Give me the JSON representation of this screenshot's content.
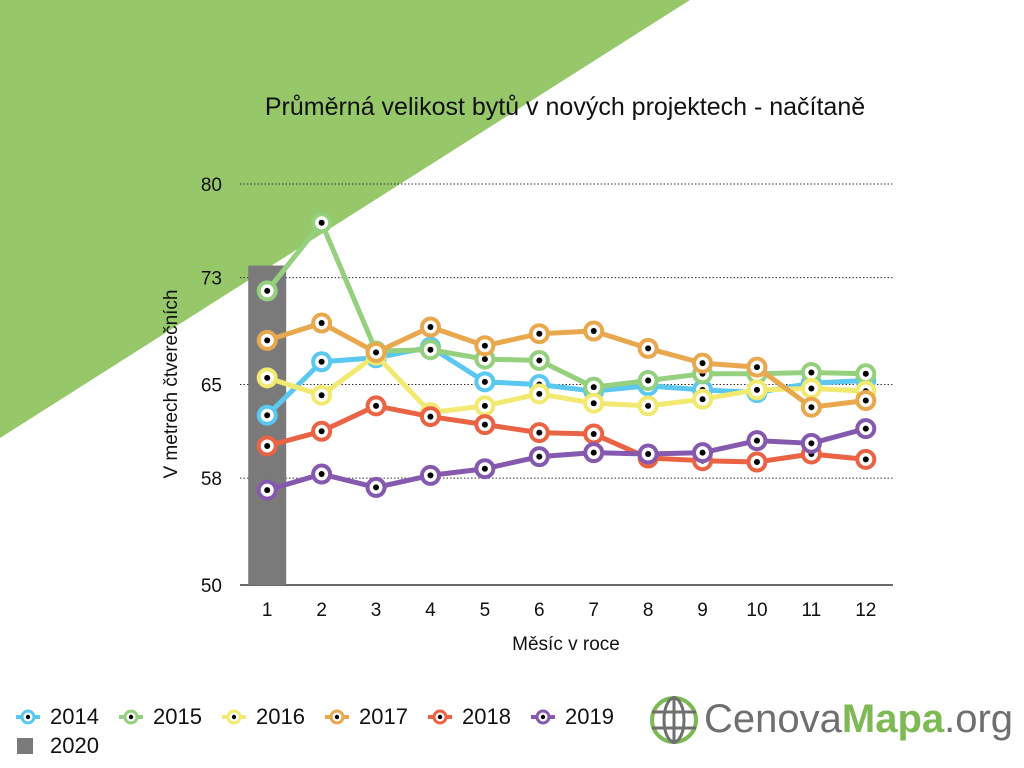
{
  "chart_data": {
    "type": "line",
    "title": "Průměrná velikost bytů v nových projektech - načítaně",
    "xlabel": "Měsíc v roce",
    "ylabel": "V metrech čtverečních",
    "x": [
      1,
      2,
      3,
      4,
      5,
      6,
      7,
      8,
      9,
      10,
      11,
      12
    ],
    "ylim": [
      50,
      80
    ],
    "yticks": [
      50,
      58,
      65,
      73,
      80
    ],
    "grid": "dotted horizontal",
    "series": [
      {
        "name": "2014",
        "color": "#5ac8f0",
        "type": "line",
        "values": [
          62.7,
          66.7,
          67.0,
          67.8,
          65.2,
          65.0,
          64.5,
          64.9,
          64.6,
          64.4,
          65.1,
          65.3
        ]
      },
      {
        "name": "2015",
        "color": "#94d07e",
        "type": "line",
        "values": [
          72.0,
          77.1,
          67.5,
          67.6,
          66.9,
          66.8,
          64.8,
          65.3,
          65.8,
          65.8,
          65.9,
          65.8
        ]
      },
      {
        "name": "2016",
        "color": "#f2ea70",
        "type": "line",
        "values": [
          65.5,
          64.2,
          67.2,
          62.9,
          63.4,
          64.3,
          63.6,
          63.4,
          63.9,
          64.6,
          64.7,
          64.5
        ]
      },
      {
        "name": "2017",
        "color": "#e9a84e",
        "type": "line",
        "values": [
          68.3,
          69.6,
          67.4,
          69.3,
          67.9,
          68.8,
          69.0,
          67.7,
          66.6,
          66.3,
          63.3,
          63.8
        ]
      },
      {
        "name": "2018",
        "color": "#ea6345",
        "type": "line",
        "values": [
          60.4,
          61.5,
          63.4,
          62.6,
          62.0,
          61.4,
          61.3,
          59.5,
          59.3,
          59.2,
          59.8,
          59.4
        ]
      },
      {
        "name": "2019",
        "color": "#8559ad",
        "type": "line",
        "values": [
          57.1,
          58.3,
          57.3,
          58.2,
          58.7,
          59.6,
          59.9,
          59.8,
          59.9,
          60.8,
          60.6,
          61.7
        ]
      },
      {
        "name": "2020",
        "color": "#7a7a7a",
        "type": "bar",
        "values": [
          73.9,
          null,
          null,
          null,
          null,
          null,
          null,
          null,
          null,
          null,
          null,
          null
        ]
      }
    ],
    "legend_position": "bottom-left"
  },
  "branding": {
    "logo_part1": "Cenova",
    "logo_part2": "Mapa",
    "logo_part3": ".org",
    "triangle_color": "#96c86a"
  }
}
